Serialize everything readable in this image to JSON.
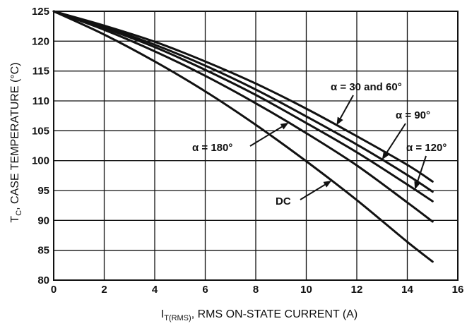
{
  "chart_data": {
    "type": "line",
    "xlabel_main": "I",
    "xlabel_sub": "T(RMS)",
    "xlabel_rest": ", RMS ON-STATE CURRENT (A)",
    "ylabel_main": "T",
    "ylabel_sub": "C",
    "ylabel_rest": ", CASE TEMPERATURE (°C)",
    "xlim": [
      0,
      16
    ],
    "ylim": [
      80,
      125
    ],
    "xticks": [
      "0",
      "2",
      "4",
      "6",
      "8",
      "10",
      "12",
      "14",
      "16"
    ],
    "yticks": [
      "80",
      "85",
      "90",
      "95",
      "100",
      "105",
      "110",
      "115",
      "120",
      "125"
    ],
    "grid": true,
    "series": [
      {
        "name": "α = 30 and 60°",
        "x": [
          0,
          2,
          4,
          6,
          8,
          10,
          12,
          14,
          15
        ],
        "y": [
          125,
          122.6,
          119.9,
          116.6,
          112.9,
          108.7,
          104.1,
          99.3,
          96.5
        ]
      },
      {
        "name": "α = 90°",
        "x": [
          0,
          2,
          4,
          6,
          8,
          10,
          12,
          14,
          15
        ],
        "y": [
          125,
          122.4,
          119.4,
          115.9,
          111.9,
          107.4,
          102.7,
          97.6,
          94.8
        ]
      },
      {
        "name": "α = 120°",
        "x": [
          0,
          2,
          4,
          6,
          8,
          10,
          12,
          14,
          15
        ],
        "y": [
          125,
          122.2,
          119.0,
          115.2,
          111.0,
          106.3,
          101.4,
          96.0,
          93.2
        ]
      },
      {
        "name": "α = 180°",
        "x": [
          0,
          2,
          4,
          6,
          8,
          10,
          12,
          14,
          15
        ],
        "y": [
          125,
          121.9,
          118.3,
          114.2,
          109.6,
          104.6,
          99.2,
          93.0,
          89.8
        ]
      },
      {
        "name": "DC",
        "x": [
          0,
          2,
          4,
          6,
          8,
          10,
          12,
          14,
          15
        ],
        "y": [
          125,
          121.1,
          116.6,
          111.6,
          106.0,
          99.9,
          93.4,
          86.4,
          83.1
        ]
      }
    ],
    "annotations": [
      {
        "text": "α = 30 and 60°",
        "series": 0,
        "at_x": 11.2
      },
      {
        "text": "α = 90°",
        "series": 1,
        "at_x": 13.0
      },
      {
        "text": "α = 120°",
        "series": 2,
        "at_x": 14.3
      },
      {
        "text": "α = 180°",
        "series": 3,
        "at_x": 9.3
      },
      {
        "text": "DC",
        "series": 4,
        "at_x": 11.0
      }
    ]
  }
}
